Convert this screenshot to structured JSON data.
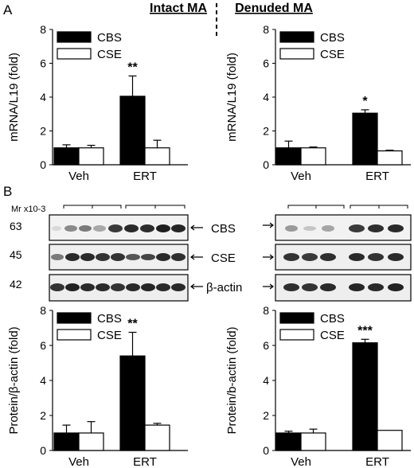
{
  "figure": {
    "panel_a_label": "A",
    "panel_b_label": "B",
    "intact_title": "Intact MA",
    "denuded_title": "Denuded MA",
    "mr_label": "Mr x10-3",
    "mw_markers": [
      "63",
      "45",
      "42"
    ],
    "blot_labels": [
      "CBS",
      "CSE",
      "β-actin"
    ]
  },
  "chart_data": [
    {
      "type": "bar",
      "panel": "A",
      "column": "Intact MA",
      "categories": [
        "Veh",
        "ERT"
      ],
      "series": [
        {
          "name": "CBS",
          "values": [
            1.0,
            4.05
          ],
          "errors": [
            0.18,
            1.2
          ],
          "color": "#000000"
        },
        {
          "name": "CSE",
          "values": [
            1.0,
            1.0
          ],
          "errors": [
            0.15,
            0.45
          ],
          "color": "#ffffff"
        }
      ],
      "significance": [
        "",
        "**"
      ],
      "ylabel": "mRNA/L19 (fold)",
      "ylim": [
        0,
        8
      ],
      "yticks": [
        0,
        2,
        4,
        6,
        8
      ],
      "legend": "top-left"
    },
    {
      "type": "bar",
      "panel": "A",
      "column": "Denuded MA",
      "categories": [
        "Veh",
        "ERT"
      ],
      "series": [
        {
          "name": "CBS",
          "values": [
            1.0,
            3.05
          ],
          "errors": [
            0.4,
            0.2
          ],
          "color": "#000000"
        },
        {
          "name": "CSE",
          "values": [
            1.0,
            0.82
          ],
          "errors": [
            0.05,
            0.04
          ],
          "color": "#ffffff"
        }
      ],
      "significance": [
        "",
        "*"
      ],
      "ylabel": "mRNA/L19 (fold)",
      "ylim": [
        0,
        8
      ],
      "yticks": [
        0,
        2,
        4,
        6,
        8
      ],
      "legend": "top-left"
    },
    {
      "type": "bar",
      "panel": "B",
      "column": "Intact MA",
      "categories": [
        "Veh",
        "ERT"
      ],
      "series": [
        {
          "name": "CBS",
          "values": [
            1.0,
            5.4
          ],
          "errors": [
            0.45,
            1.35
          ],
          "color": "#000000"
        },
        {
          "name": "CSE",
          "values": [
            1.0,
            1.45
          ],
          "errors": [
            0.65,
            0.1
          ],
          "color": "#ffffff"
        }
      ],
      "significance": [
        "",
        "**"
      ],
      "ylabel": "Protein/β-actin (fold)",
      "ylim": [
        0,
        8
      ],
      "yticks": [
        0,
        2,
        4,
        6,
        8
      ],
      "legend": "top-left"
    },
    {
      "type": "bar",
      "panel": "B",
      "column": "Denuded MA",
      "categories": [
        "Veh",
        "ERT"
      ],
      "series": [
        {
          "name": "CBS",
          "values": [
            1.0,
            6.15
          ],
          "errors": [
            0.1,
            0.2
          ],
          "color": "#000000"
        },
        {
          "name": "CSE",
          "values": [
            1.0,
            1.15
          ],
          "errors": [
            0.22,
            0.0
          ],
          "color": "#ffffff"
        }
      ],
      "significance": [
        "",
        "***"
      ],
      "ylabel": "Protein/b-actin (fold)",
      "ylim": [
        0,
        8
      ],
      "yticks": [
        0,
        2,
        4,
        6,
        8
      ],
      "legend": "top-left"
    }
  ]
}
